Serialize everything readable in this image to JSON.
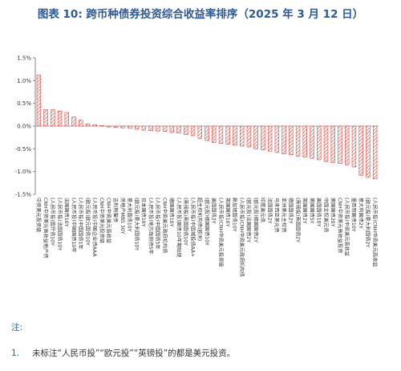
{
  "title": "图表 10: 跨币种债券投资综合收益率排序（2025 年 3 月 12 日）",
  "notes_label": "注:",
  "notes": [
    {
      "num": "1.",
      "text": "未标注“人民币投”“欧元投”“英镑投”的都是美元投资。"
    }
  ],
  "colors": {
    "title": "#2a5a9a",
    "bar_stroke": "#e0453c",
    "axis": "#888888"
  },
  "chart_data": {
    "type": "bar",
    "ylim": [
      -0.015,
      0.015
    ],
    "y_ticks": [
      "1.5%",
      "1.0%",
      "0.5%",
      "0.0%",
      "-0.5%",
      "-1.0%",
      "-1.5%"
    ],
    "y_tick_values": [
      0.015,
      0.01,
      0.005,
      0,
      -0.005,
      -0.01,
      -0.015
    ],
    "grid": false,
    "categories": [
      "中资美元投资级",
      "CNH中资美元高收益地产债",
      "(人民币投)国开债10Y",
      "(人民币投)法国国债10Y",
      "法国国债10Y",
      "(人民币投)中国国债10年",
      "(人民币投)中国国债1年",
      "(欧元投)欧元国债10Y",
      "(人民币投)中国企业债AAA",
      "CNH中资美元投资级",
      "CNH中资美元高收益",
      "吉利熊猫债",
      "房地产MBS 30Y",
      "意大利国债10Y",
      "(欧元投)意大利国债10Y",
      "日本国债10Y",
      "(人民币投)地方政府债5年",
      "(人民币投)中国国债5年",
      "CNH中资美元政府机构债",
      "德国国债10Y",
      "(人民币投)国债10年期贴现",
      "(英镑投)英国国债10Y",
      "(人民币投)中国城投债AA+",
      "超主权机构债(欧洲)",
      "(欧元投)德国国债10Y",
      "美国国债2Y",
      "(人民币投)CNH中资美元投资级",
      "英国国债10Y",
      "新加坡国债10Y",
      "(人民币投)CNH中资美元政府机构债",
      "(欧元投)法国国债2Y",
      "(欧元投)德国国债2Y",
      "印度美元债",
      "法国国债2Y",
      "马来西亚美元债",
      "亚洲美元主权债",
      "德国国债2Y",
      "(英镑投)英国国债2Y",
      "英国国债2Y",
      "美国国债5Y",
      "美国国债10Y",
      "中国主权美元债",
      "美国国债20Y",
      "CNH中资美元高收益投资",
      "(人民币投)中资美元高收益",
      "墨西哥国债10Y",
      "意大利国债2Y",
      "(欧元投)意大利国债2Y",
      "(人民币投)CNH中资美元高收益"
    ],
    "values": [
      0.0112,
      0.0036,
      0.0036,
      0.0033,
      0.003,
      0.002,
      0.0013,
      0.0005,
      0.0003,
      0.0001,
      -0.0002,
      -0.0003,
      -0.0004,
      -0.0005,
      -0.0007,
      -0.0009,
      -0.001,
      -0.0011,
      -0.0012,
      -0.0014,
      -0.0015,
      -0.0019,
      -0.0021,
      -0.0027,
      -0.0032,
      -0.0036,
      -0.0038,
      -0.004,
      -0.0042,
      -0.0044,
      -0.0046,
      -0.005,
      -0.0052,
      -0.0055,
      -0.0058,
      -0.0061,
      -0.0063,
      -0.0066,
      -0.0068,
      -0.0071,
      -0.0074,
      -0.0078,
      -0.008,
      -0.0082,
      -0.0085,
      -0.009,
      -0.0108,
      -0.0112,
      -0.0116
    ]
  }
}
